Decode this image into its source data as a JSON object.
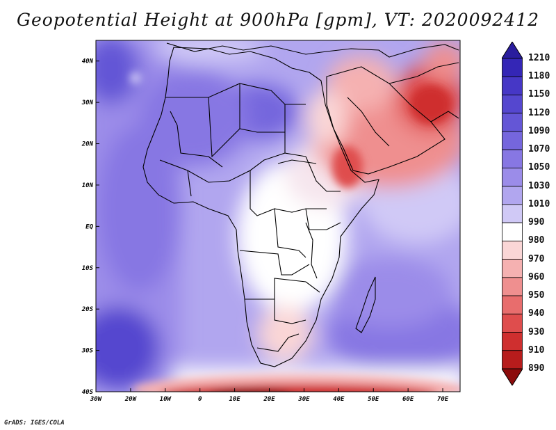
{
  "title": "Geopotential Height at 900hPa [gpm], VT: 2020092412",
  "credit": "GrADS: IGES/COLA",
  "map": {
    "lon_range": [
      -30,
      75
    ],
    "lat_range": [
      -40,
      45
    ],
    "lon_ticks": [
      "30W",
      "20W",
      "10W",
      "0",
      "10E",
      "20E",
      "30E",
      "40E",
      "50E",
      "60E",
      "70E"
    ],
    "lat_ticks": [
      "40N",
      "30N",
      "20N",
      "10N",
      "EQ",
      "10S",
      "20S",
      "30S",
      "40S"
    ]
  },
  "colorbar": {
    "labels": [
      "1210",
      "1180",
      "1150",
      "1120",
      "1090",
      "1070",
      "1050",
      "1030",
      "1010",
      "990",
      "980",
      "970",
      "960",
      "950",
      "940",
      "930",
      "910",
      "890"
    ],
    "colors": [
      "#2a1d9e",
      "#3426b6",
      "#4637c6",
      "#5547cf",
      "#6456d6",
      "#7566dd",
      "#8777e3",
      "#9b8ce9",
      "#b1a6ef",
      "#d0c9f6",
      "#ffffff",
      "#fad6d6",
      "#f5b1b1",
      "#ef8f8f",
      "#e86d6d",
      "#df4d4d",
      "#cf2f2f",
      "#b71c1c",
      "#8c0c0c"
    ]
  }
}
